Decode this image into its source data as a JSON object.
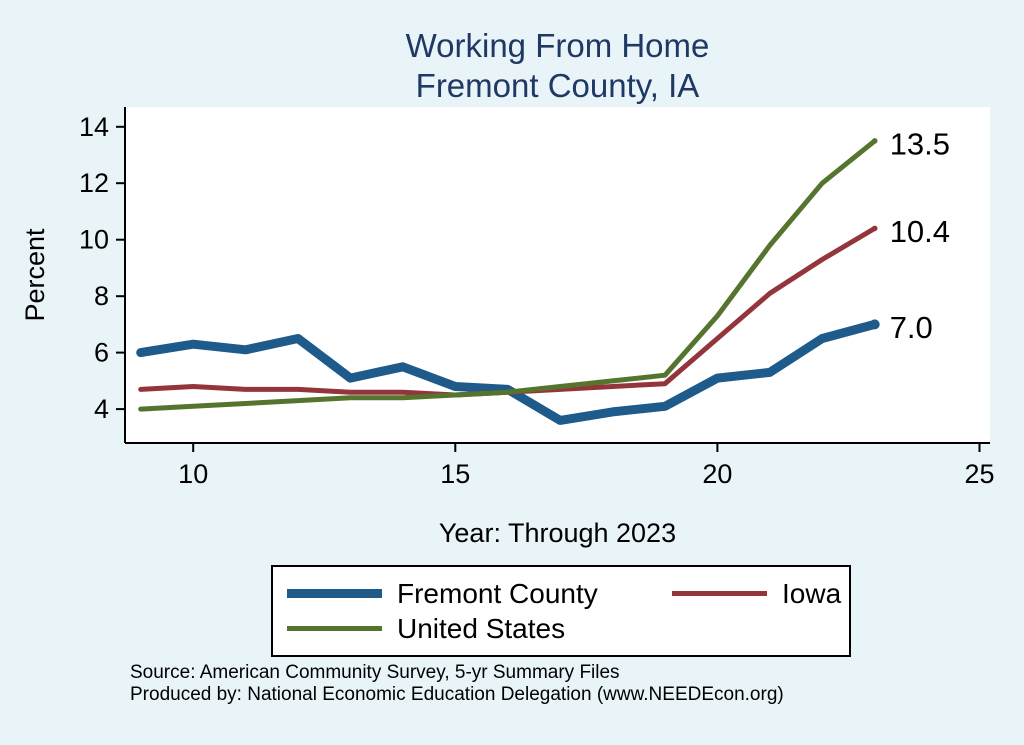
{
  "title": {
    "line1": "Working From Home",
    "line2": "Fremont County, IA"
  },
  "colors": {
    "background": "#e9f4f9",
    "title": "#1f3864",
    "plot_bg": "#ffffff",
    "axis": "#000000"
  },
  "chart_data": {
    "type": "line",
    "x": [
      9,
      10,
      11,
      12,
      13,
      14,
      15,
      16,
      17,
      18,
      19,
      20,
      21,
      22,
      23
    ],
    "series": [
      {
        "name": "Fremont County",
        "color": "#1e5a8a",
        "width": 9,
        "values": [
          6.0,
          6.3,
          6.1,
          6.5,
          5.1,
          5.5,
          4.8,
          4.7,
          3.6,
          3.9,
          4.1,
          5.1,
          5.3,
          6.5,
          7.0
        ],
        "end_label": "7.0"
      },
      {
        "name": "Iowa",
        "color": "#94353c",
        "width": 5,
        "values": [
          4.7,
          4.8,
          4.7,
          4.7,
          4.6,
          4.6,
          4.5,
          4.6,
          4.7,
          4.8,
          4.9,
          6.5,
          8.1,
          9.3,
          10.4
        ],
        "end_label": "10.4"
      },
      {
        "name": "United States",
        "color": "#55752f",
        "width": 5,
        "values": [
          4.0,
          4.1,
          4.2,
          4.3,
          4.4,
          4.4,
          4.5,
          4.6,
          4.8,
          5.0,
          5.2,
          7.3,
          9.8,
          12.0,
          13.5
        ],
        "end_label": "13.5"
      }
    ],
    "title": "Working From Home — Fremont County, IA",
    "xlabel": "Year: Through 2023",
    "ylabel": "Percent",
    "x_ticks": [
      10,
      15,
      20,
      25
    ],
    "y_ticks": [
      4,
      6,
      8,
      10,
      12,
      14
    ],
    "xlim": [
      8.7,
      25.2
    ],
    "ylim": [
      2.8,
      14.7
    ],
    "grid": false,
    "legend_position": "bottom"
  },
  "source": {
    "line1": "Source: American Community Survey, 5-yr Summary Files",
    "line2": "Produced by: National Economic Education Delegation (www.NEEDEcon.org)"
  }
}
